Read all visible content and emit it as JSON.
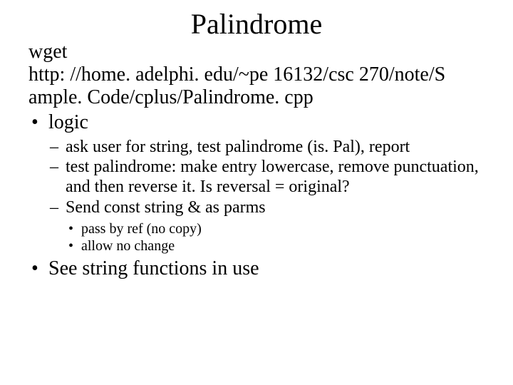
{
  "title": "Palindrome",
  "intro_lines": [
    "wget",
    "http: //home. adelphi. edu/~pe 16132/csc 270/note/S",
    "ample. Code/cplus/Palindrome. cpp"
  ],
  "bullets": {
    "l1_logic": "logic",
    "l2_items": [
      "ask user for string, test palindrome (is. Pal), report",
      "test palindrome: make entry lowercase, remove punctuation, and then reverse it. Is reversal = original?",
      "Send const string & as parms"
    ],
    "l3_items": [
      "pass by ref (no copy)",
      "allow no change"
    ],
    "l1_see": "See string functions in use"
  },
  "colors": {
    "background": "#ffffff",
    "text": "#000000"
  },
  "fonts": {
    "family": "Times New Roman",
    "title_size_pt": 40,
    "body_size_pt": 28,
    "level2_size_pt": 24,
    "level3_size_pt": 20
  }
}
